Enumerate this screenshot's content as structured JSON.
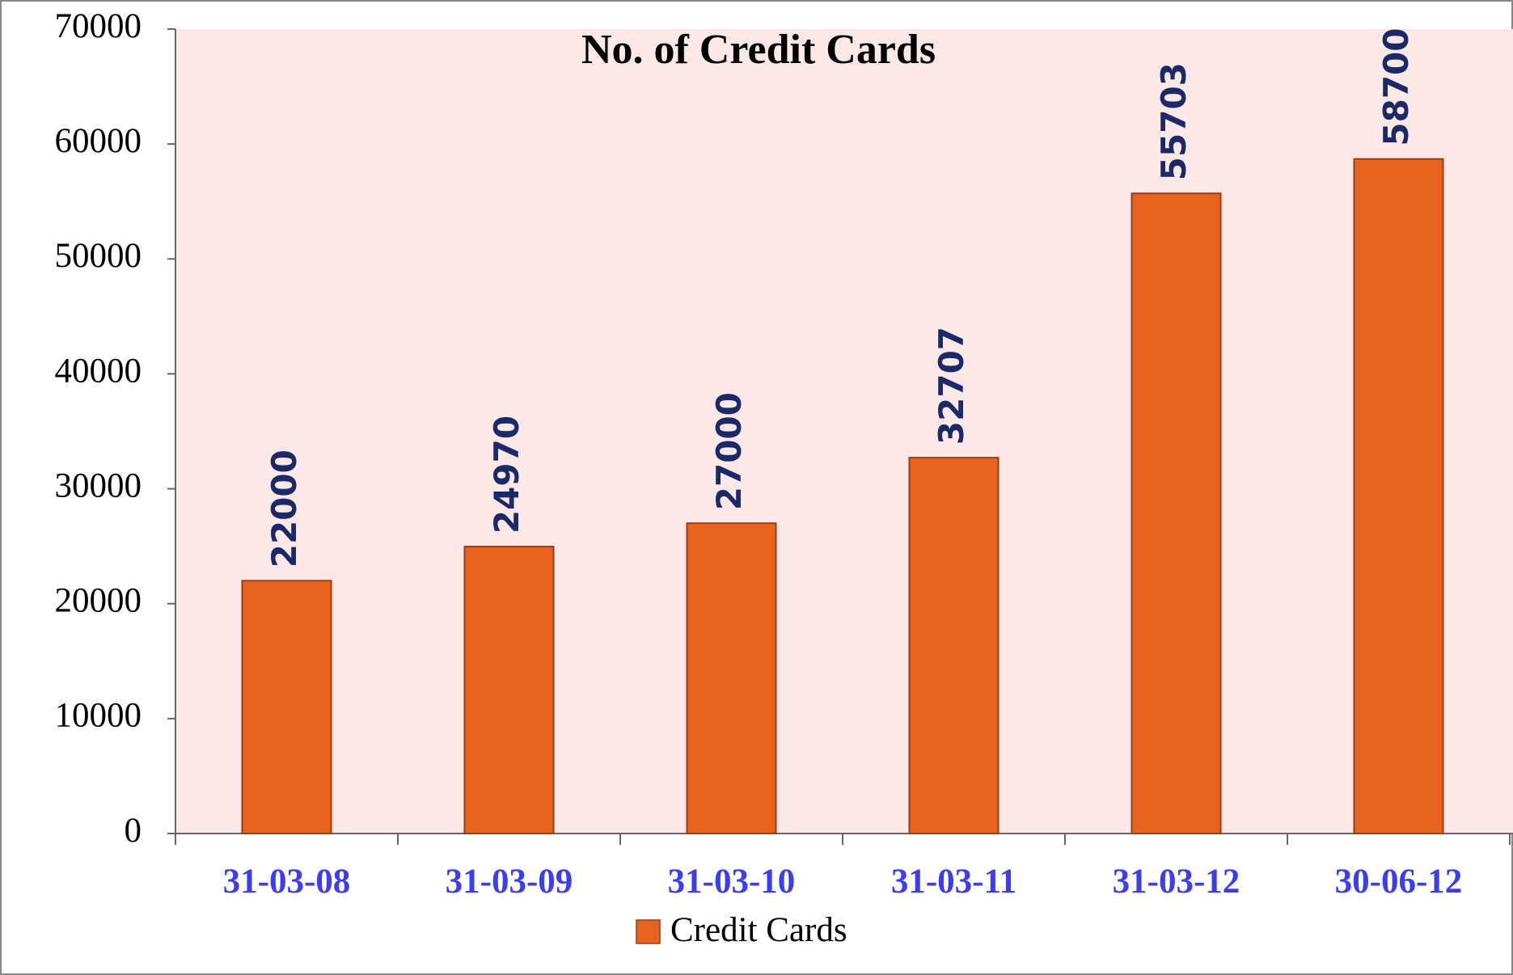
{
  "chart_data": {
    "type": "bar",
    "title": "No. of Credit Cards",
    "categories": [
      "31-03-08",
      "31-03-09",
      "31-03-10",
      "31-03-11",
      "31-03-12",
      "30-06-12"
    ],
    "series": [
      {
        "name": "Credit Cards",
        "color": "#e8641e",
        "values": [
          22000,
          24970,
          27000,
          32707,
          55703,
          58700
        ]
      }
    ],
    "ylim": [
      0,
      70000
    ],
    "yticks": [
      0,
      10000,
      20000,
      30000,
      40000,
      50000,
      60000,
      70000
    ],
    "legend": "bottom",
    "data_labels": true
  }
}
